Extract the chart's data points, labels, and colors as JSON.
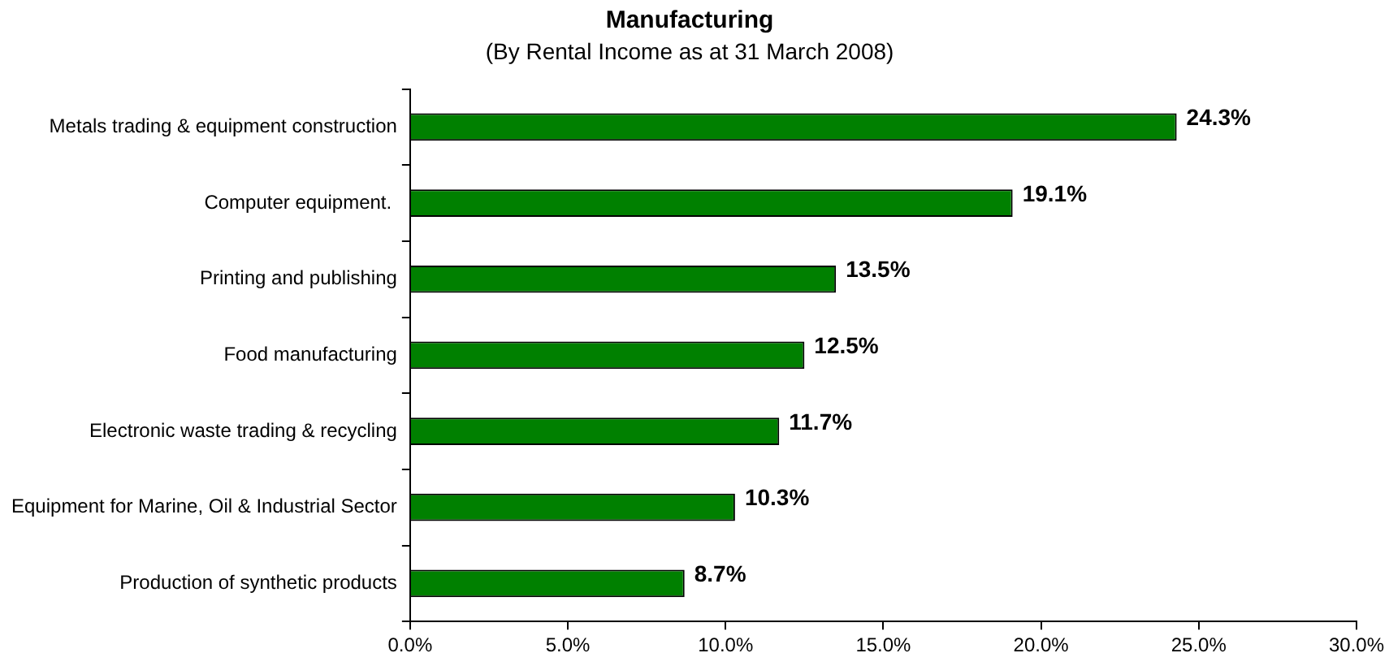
{
  "chart_data": {
    "type": "bar",
    "orientation": "horizontal",
    "title": "Manufacturing",
    "subtitle": "(By Rental Income as at 31 March 2008)",
    "categories": [
      "Metals trading & equipment construction",
      "Computer equipment. ",
      "Printing and publishing",
      "Food manufacturing",
      "Electronic waste trading & recycling",
      "Equipment for Marine, Oil & Industrial Sector",
      "Production of synthetic products"
    ],
    "values": [
      24.3,
      19.1,
      13.5,
      12.5,
      11.7,
      10.3,
      8.7
    ],
    "value_labels": [
      "24.3%",
      "19.1%",
      "13.5%",
      "12.5%",
      "11.7%",
      "10.3%",
      "8.7%"
    ],
    "color": "#008000",
    "xlim": [
      0,
      30
    ],
    "xticks": [
      {
        "value": 0,
        "label": "0.0%"
      },
      {
        "value": 5,
        "label": "5.0%"
      },
      {
        "value": 10,
        "label": "10.0%"
      },
      {
        "value": 15,
        "label": "15.0%"
      },
      {
        "value": 20,
        "label": "20.0%"
      },
      {
        "value": 25,
        "label": "25.0%"
      },
      {
        "value": 30,
        "label": "30.0%"
      }
    ],
    "grid": false,
    "legend": false
  }
}
